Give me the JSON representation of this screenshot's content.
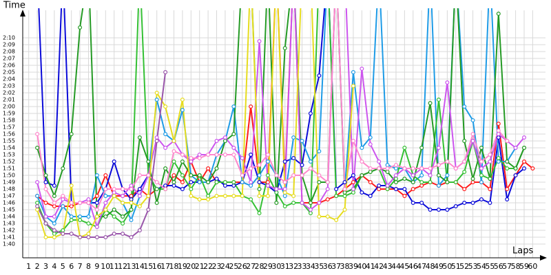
{
  "chart_data": {
    "type": "line",
    "y_label": "Time",
    "x_label": "Laps",
    "x": [
      1,
      2,
      3,
      4,
      5,
      6,
      7,
      8,
      9,
      10,
      11,
      12,
      13,
      14,
      15,
      16,
      17,
      18,
      19,
      20,
      21,
      22,
      23,
      24,
      25,
      26,
      27,
      28,
      29,
      30,
      31,
      32,
      33,
      34,
      35,
      36,
      37,
      38,
      39,
      40,
      41,
      42,
      43,
      44,
      45,
      46,
      47,
      48,
      49,
      50,
      51,
      52,
      53,
      54,
      55,
      56,
      57,
      58,
      59,
      60
    ],
    "xlim": [
      0.3,
      61.5
    ],
    "xticks": [
      1,
      2,
      3,
      4,
      5,
      6,
      7,
      8,
      9,
      10,
      11,
      12,
      13,
      14,
      15,
      16,
      17,
      18,
      19,
      20,
      21,
      22,
      23,
      24,
      25,
      26,
      27,
      28,
      29,
      30,
      31,
      32,
      33,
      34,
      35,
      36,
      37,
      38,
      39,
      40,
      41,
      42,
      43,
      44,
      45,
      46,
      47,
      48,
      49,
      50,
      51,
      52,
      53,
      54,
      55,
      56,
      57,
      58,
      59,
      60
    ],
    "ylim": [
      98,
      134
    ],
    "yticks": [
      {
        "value": 100,
        "label": "1:40"
      },
      {
        "value": 101,
        "label": "1:41"
      },
      {
        "value": 102,
        "label": "1:42"
      },
      {
        "value": 103,
        "label": "1:43"
      },
      {
        "value": 104,
        "label": "1:44"
      },
      {
        "value": 105,
        "label": "1:45"
      },
      {
        "value": 106,
        "label": "1:46"
      },
      {
        "value": 107,
        "label": "1:47"
      },
      {
        "value": 108,
        "label": "1:48"
      },
      {
        "value": 109,
        "label": "1:49"
      },
      {
        "value": 110,
        "label": "1:50"
      },
      {
        "value": 111,
        "label": "1:51"
      },
      {
        "value": 112,
        "label": "1:52"
      },
      {
        "value": 113,
        "label": "1:53"
      },
      {
        "value": 114,
        "label": "1:54"
      },
      {
        "value": 115,
        "label": "1:55"
      },
      {
        "value": 116,
        "label": "1:56"
      },
      {
        "value": 117,
        "label": "1:57"
      },
      {
        "value": 118,
        "label": "1:58"
      },
      {
        "value": 119,
        "label": "1:59"
      },
      {
        "value": 120,
        "label": "2:00"
      },
      {
        "value": 121,
        "label": "2:01"
      },
      {
        "value": 122,
        "label": "2:02"
      },
      {
        "value": 123,
        "label": "2:03"
      },
      {
        "value": 124,
        "label": "2:04"
      },
      {
        "value": 125,
        "label": "2:05"
      },
      {
        "value": 126,
        "label": "2:06"
      },
      {
        "value": 127,
        "label": "2:07"
      },
      {
        "value": 128,
        "label": "2:08"
      },
      {
        "value": 129,
        "label": "2:09"
      },
      {
        "value": 130,
        "label": "2:10"
      }
    ],
    "grid": true,
    "series": [
      {
        "color": "#ff1a1a",
        "values": [
          null,
          107,
          106,
          105.5,
          105.5,
          105.5,
          106,
          106,
          107,
          110,
          107,
          107,
          107,
          108,
          107,
          108,
          108,
          110,
          109,
          112,
          109,
          111,
          109,
          109,
          109,
          109,
          120,
          109,
          109,
          140,
          109,
          140,
          106,
          106,
          106,
          106.5,
          107,
          108,
          109,
          110,
          109,
          108,
          108,
          108,
          107,
          108,
          108.5,
          109,
          108.5,
          109,
          109,
          108,
          109,
          109,
          108,
          117.5,
          108,
          110,
          112,
          111
        ]
      },
      {
        "color": "#0a0ad8",
        "values": [
          null,
          140,
          109,
          108.5,
          140,
          106,
          106,
          106,
          106,
          108,
          112,
          108,
          106.5,
          108,
          110,
          108,
          108.5,
          108.5,
          108,
          109,
          109,
          109,
          109.5,
          108.5,
          108.5,
          109,
          113,
          109,
          108.5,
          107.5,
          112,
          112.5,
          111.5,
          119,
          124.5,
          140,
          108,
          109,
          110,
          107.5,
          107,
          108.5,
          108.5,
          108,
          108,
          106,
          106,
          105,
          105,
          105,
          105.5,
          106,
          106,
          106.5,
          106,
          115.5,
          106.5,
          110,
          111,
          null
        ]
      },
      {
        "color": "#1e9be6",
        "values": [
          null,
          107,
          104,
          103,
          105.5,
          104,
          104,
          104,
          110,
          107,
          107,
          106,
          103.5,
          107,
          110,
          121,
          116,
          115,
          119.5,
          110,
          109,
          109,
          113,
          115,
          120,
          109,
          108.5,
          110,
          112,
          110,
          107,
          115.5,
          115,
          112,
          113.5,
          140,
          140,
          108,
          125,
          114,
          115.5,
          140,
          111.5,
          111,
          111,
          109,
          110,
          140,
          108.5,
          110,
          140,
          120,
          118,
          109,
          140,
          112,
          112,
          114,
          null,
          null
        ]
      },
      {
        "color": "#33c033",
        "values": [
          null,
          106,
          103,
          101.5,
          102,
          103.5,
          103.5,
          103,
          102.5,
          105,
          104,
          103,
          105,
          140,
          110,
          108,
          108,
          112,
          110,
          108,
          110,
          107,
          109,
          109,
          109,
          107,
          106.5,
          104.5,
          110,
          107.5,
          105.5,
          106,
          106,
          104.5,
          140,
          140,
          107,
          107,
          107.5,
          110,
          110.5,
          111,
          108,
          109.5,
          114,
          110,
          109,
          109,
          121,
          109,
          109,
          110.5,
          115,
          110,
          109.5,
          112.5,
          111,
          111,
          114,
          null
        ]
      },
      {
        "color": "#249a24",
        "values": [
          null,
          114,
          110,
          107,
          111,
          116,
          131.5,
          140,
          104,
          104,
          105,
          104,
          105,
          115.5,
          112,
          106,
          111,
          109,
          112,
          110,
          110,
          109,
          111,
          115,
          116,
          140,
          140,
          108,
          140,
          106,
          128.5,
          140,
          110,
          106,
          109,
          109,
          140,
          107.5,
          108,
          110,
          110.5,
          111,
          110.5,
          109,
          109.5,
          109,
          114,
          120.5,
          110,
          109,
          140,
          115,
          109.5,
          114,
          109.5,
          133.5,
          112,
          111,
          114,
          null
        ]
      },
      {
        "color": "#cc55ee",
        "values": [
          null,
          109,
          104,
          104,
          106.5,
          106,
          106,
          106.5,
          102.5,
          106,
          107.5,
          107,
          108.5,
          107,
          110,
          115.5,
          114,
          115,
          113,
          112,
          113,
          113,
          115,
          115.5,
          114,
          112.5,
          109,
          129.5,
          108.5,
          108,
          108,
          140,
          106,
          105,
          106,
          108,
          140,
          140,
          108,
          125.5,
          114.5,
          112,
          108.5,
          110,
          111,
          110,
          111,
          110,
          114,
          123.5,
          111,
          112,
          115,
          111,
          112,
          116,
          115,
          114,
          115.5,
          null
        ]
      },
      {
        "color": "#ff88cc",
        "values": [
          null,
          116,
          108,
          106,
          107,
          106,
          106,
          106,
          105,
          108,
          108,
          108,
          108,
          110,
          110,
          109,
          108,
          113.5,
          113,
          112.5,
          112.5,
          113,
          113,
          113,
          113,
          110,
          111,
          111.5,
          113,
          110,
          109,
          110,
          110,
          111,
          110,
          109,
          140,
          108,
          115,
          112,
          111,
          111,
          111,
          111.5,
          111,
          111,
          111,
          111,
          111.5,
          112,
          111,
          112,
          116,
          112,
          113,
          116.5,
          115,
          null,
          null,
          null
        ]
      },
      {
        "color": "#e6dc1e",
        "values": [
          null,
          105,
          101,
          101,
          101.5,
          108.5,
          101,
          101.5,
          104,
          105,
          107,
          106,
          106,
          105.5,
          107,
          122,
          120,
          115,
          121,
          107,
          106.5,
          106.5,
          107,
          107,
          107,
          107,
          140,
          107,
          107,
          140,
          107.5,
          107,
          140,
          140,
          104,
          104,
          103.5,
          105,
          123,
          null,
          null,
          null,
          null,
          null,
          null,
          null,
          null,
          null,
          null,
          null,
          null,
          null,
          null,
          null,
          null,
          null,
          null,
          null,
          null,
          null
        ]
      },
      {
        "color": "#9955aa",
        "values": [
          null,
          105.5,
          103,
          102,
          101.5,
          101.5,
          101,
          101,
          101,
          101,
          101.5,
          101.5,
          101,
          102,
          105,
          115,
          125,
          null,
          null,
          null,
          null,
          null,
          null,
          null,
          null,
          null,
          null,
          null,
          null,
          null,
          null,
          null,
          null,
          null,
          null,
          null,
          null,
          null,
          null,
          null,
          null,
          null,
          null,
          null,
          null,
          null,
          null,
          null,
          null,
          null,
          null,
          null,
          null,
          null,
          null,
          null,
          null,
          null,
          null,
          null
        ]
      }
    ]
  }
}
